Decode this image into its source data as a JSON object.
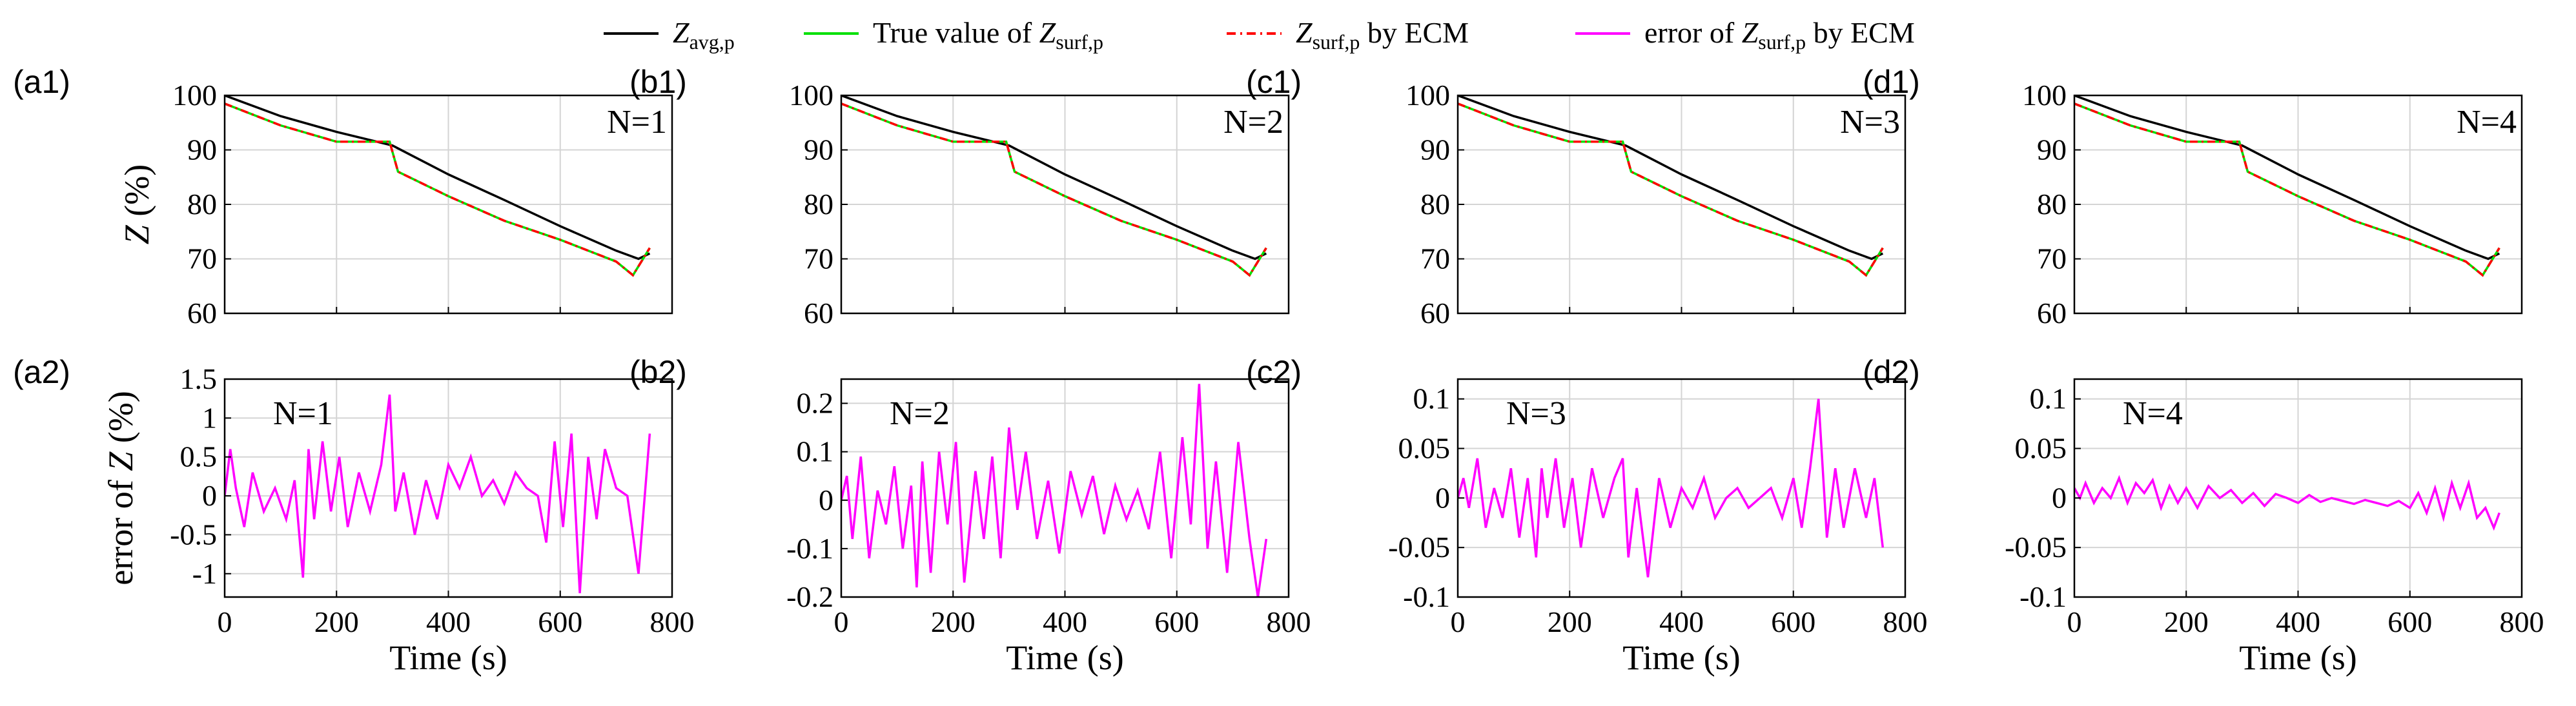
{
  "legend": {
    "items": [
      {
        "sym": "Z",
        "sub": "avg,p",
        "pre": "",
        "post": "",
        "color": "#000000",
        "style": "solid"
      },
      {
        "sym": "Z",
        "sub": "surf,p",
        "pre": "True value of ",
        "post": "",
        "color": "#00e000",
        "style": "solid"
      },
      {
        "sym": "Z",
        "sub": "surf,p",
        "pre": "",
        "post": " by ECM",
        "color": "#ff0000",
        "style": "dashdot"
      },
      {
        "sym": "Z",
        "sub": "surf,p",
        "pre": "error of ",
        "post": " by ECM",
        "color": "#ff00ff",
        "style": "solid"
      }
    ]
  },
  "colors": {
    "avg": "#000000",
    "true": "#00e000",
    "ecm": "#ff0000",
    "err": "#ff00ff",
    "grid": "#d4d4d4"
  },
  "chart_data": [
    {
      "type": "line",
      "panel": "(a1)",
      "annotation": "N=1",
      "ylabel": "Z (%)",
      "xlim": [
        0,
        800
      ],
      "ylim": [
        60,
        100
      ],
      "yticks": [
        60,
        70,
        80,
        90,
        100
      ],
      "xticks": [
        0,
        200,
        400,
        600,
        800
      ],
      "show_xticks": false,
      "series": [
        {
          "name": "Z_avg,p",
          "x": [
            0,
            100,
            200,
            300,
            400,
            500,
            600,
            700,
            740,
            760
          ],
          "values": [
            100,
            96.2,
            93.3,
            90.8,
            85.5,
            80.8,
            76.0,
            71.5,
            70.0,
            71.0
          ]
        },
        {
          "name": "True value of Z_surf,p",
          "x": [
            0,
            100,
            200,
            295,
            310,
            400,
            500,
            600,
            700,
            730,
            760
          ],
          "values": [
            98.5,
            94.5,
            91.5,
            91.5,
            86.0,
            81.5,
            77.0,
            73.5,
            69.5,
            67.0,
            72.0
          ]
        },
        {
          "name": "Z_surf,p by ECM",
          "x": [
            0,
            100,
            200,
            295,
            310,
            400,
            500,
            600,
            700,
            730,
            760
          ],
          "values": [
            98.5,
            94.5,
            91.5,
            91.5,
            86.0,
            81.5,
            77.0,
            73.5,
            69.5,
            67.0,
            72.0
          ]
        }
      ]
    },
    {
      "type": "line",
      "panel": "(b1)",
      "annotation": "N=2",
      "ylabel": "",
      "xlim": [
        0,
        800
      ],
      "ylim": [
        60,
        100
      ],
      "yticks": [
        60,
        70,
        80,
        90,
        100
      ],
      "xticks": [
        0,
        200,
        400,
        600,
        800
      ],
      "show_xticks": false,
      "series": [
        {
          "name": "Z_avg,p",
          "x": [
            0,
            100,
            200,
            300,
            400,
            500,
            600,
            700,
            740,
            760
          ],
          "values": [
            100,
            96.2,
            93.3,
            90.8,
            85.5,
            80.8,
            76.0,
            71.5,
            70.0,
            71.0
          ]
        },
        {
          "name": "True value of Z_surf,p",
          "x": [
            0,
            100,
            200,
            295,
            310,
            400,
            500,
            600,
            700,
            730,
            760
          ],
          "values": [
            98.5,
            94.5,
            91.5,
            91.5,
            86.0,
            81.5,
            77.0,
            73.5,
            69.5,
            67.0,
            72.0
          ]
        },
        {
          "name": "Z_surf,p by ECM",
          "x": [
            0,
            100,
            200,
            295,
            310,
            400,
            500,
            600,
            700,
            730,
            760
          ],
          "values": [
            98.5,
            94.5,
            91.5,
            91.5,
            86.0,
            81.5,
            77.0,
            73.5,
            69.5,
            67.0,
            72.0
          ]
        }
      ]
    },
    {
      "type": "line",
      "panel": "(c1)",
      "annotation": "N=3",
      "ylabel": "",
      "xlim": [
        0,
        800
      ],
      "ylim": [
        60,
        100
      ],
      "yticks": [
        60,
        70,
        80,
        90,
        100
      ],
      "xticks": [
        0,
        200,
        400,
        600,
        800
      ],
      "show_xticks": false,
      "series": [
        {
          "name": "Z_avg,p",
          "x": [
            0,
            100,
            200,
            300,
            400,
            500,
            600,
            700,
            740,
            760
          ],
          "values": [
            100,
            96.2,
            93.3,
            90.8,
            85.5,
            80.8,
            76.0,
            71.5,
            70.0,
            71.0
          ]
        },
        {
          "name": "True value of Z_surf,p",
          "x": [
            0,
            100,
            200,
            295,
            310,
            400,
            500,
            600,
            700,
            730,
            760
          ],
          "values": [
            98.5,
            94.5,
            91.5,
            91.5,
            86.0,
            81.5,
            77.0,
            73.5,
            69.5,
            67.0,
            72.0
          ]
        },
        {
          "name": "Z_surf,p by ECM",
          "x": [
            0,
            100,
            200,
            295,
            310,
            400,
            500,
            600,
            700,
            730,
            760
          ],
          "values": [
            98.5,
            94.5,
            91.5,
            91.5,
            86.0,
            81.5,
            77.0,
            73.5,
            69.5,
            67.0,
            72.0
          ]
        }
      ]
    },
    {
      "type": "line",
      "panel": "(d1)",
      "annotation": "N=4",
      "ylabel": "",
      "xlim": [
        0,
        800
      ],
      "ylim": [
        60,
        100
      ],
      "yticks": [
        60,
        70,
        80,
        90,
        100
      ],
      "xticks": [
        0,
        200,
        400,
        600,
        800
      ],
      "show_xticks": false,
      "series": [
        {
          "name": "Z_avg,p",
          "x": [
            0,
            100,
            200,
            300,
            400,
            500,
            600,
            700,
            740,
            760
          ],
          "values": [
            100,
            96.2,
            93.3,
            90.8,
            85.5,
            80.8,
            76.0,
            71.5,
            70.0,
            71.0
          ]
        },
        {
          "name": "True value of Z_surf,p",
          "x": [
            0,
            100,
            200,
            295,
            310,
            400,
            500,
            600,
            700,
            730,
            760
          ],
          "values": [
            98.5,
            94.5,
            91.5,
            91.5,
            86.0,
            81.5,
            77.0,
            73.5,
            69.5,
            67.0,
            72.0
          ]
        },
        {
          "name": "Z_surf,p by ECM",
          "x": [
            0,
            100,
            200,
            295,
            310,
            400,
            500,
            600,
            700,
            730,
            760
          ],
          "values": [
            98.5,
            94.5,
            91.5,
            91.5,
            86.0,
            81.5,
            77.0,
            73.5,
            69.5,
            67.0,
            72.0
          ]
        }
      ]
    },
    {
      "type": "line",
      "panel": "(a2)",
      "annotation": "N=1",
      "ylabel": "error of Z (%)",
      "xlabel": "Time (s)",
      "xlim": [
        0,
        800
      ],
      "ylim": [
        -1.3,
        1.5
      ],
      "yticks": [
        -1,
        -0.5,
        0,
        0.5,
        1,
        1.5
      ],
      "ytick_labels": [
        "-1",
        "-0.5",
        "0",
        "0.5",
        "1",
        "1.5"
      ],
      "xticks": [
        0,
        200,
        400,
        600,
        800
      ],
      "show_xticks": true,
      "series": [
        {
          "name": "error of Z_surf,p by ECM",
          "x": [
            0,
            10,
            20,
            35,
            50,
            70,
            90,
            110,
            125,
            140,
            150,
            160,
            175,
            190,
            205,
            220,
            240,
            260,
            280,
            295,
            305,
            320,
            340,
            360,
            380,
            400,
            420,
            440,
            460,
            480,
            500,
            520,
            540,
            560,
            575,
            590,
            605,
            620,
            635,
            650,
            665,
            680,
            700,
            720,
            740,
            760
          ],
          "values": [
            0,
            0.6,
            0.1,
            -0.4,
            0.3,
            -0.2,
            0.1,
            -0.3,
            0.2,
            -1.05,
            0.6,
            -0.3,
            0.7,
            -0.2,
            0.5,
            -0.4,
            0.3,
            -0.2,
            0.4,
            1.3,
            -0.2,
            0.3,
            -0.5,
            0.2,
            -0.3,
            0.4,
            0.1,
            0.5,
            0.0,
            0.2,
            -0.1,
            0.3,
            0.1,
            0.0,
            -0.6,
            0.7,
            -0.4,
            0.8,
            -1.25,
            0.5,
            -0.3,
            0.6,
            0.1,
            0.0,
            -1.0,
            0.8
          ]
        }
      ]
    },
    {
      "type": "line",
      "panel": "(b2)",
      "annotation": "N=2",
      "ylabel": "",
      "xlabel": "Time (s)",
      "xlim": [
        0,
        800
      ],
      "ylim": [
        -0.2,
        0.25
      ],
      "yticks": [
        -0.2,
        -0.1,
        0,
        0.1,
        0.2
      ],
      "ytick_labels": [
        "-0.2",
        "-0.1",
        "0",
        "0.1",
        "0.2"
      ],
      "xticks": [
        0,
        200,
        400,
        600,
        800
      ],
      "show_xticks": true,
      "series": [
        {
          "name": "error of Z_surf,p by ECM",
          "x": [
            0,
            10,
            20,
            35,
            50,
            65,
            80,
            95,
            110,
            125,
            135,
            145,
            160,
            175,
            190,
            205,
            220,
            240,
            255,
            270,
            285,
            300,
            315,
            330,
            350,
            370,
            390,
            410,
            430,
            450,
            470,
            490,
            510,
            530,
            550,
            570,
            590,
            610,
            625,
            640,
            655,
            670,
            690,
            710,
            730,
            745,
            760
          ],
          "values": [
            0,
            0.05,
            -0.08,
            0.09,
            -0.12,
            0.02,
            -0.05,
            0.07,
            -0.1,
            0.03,
            -0.18,
            0.08,
            -0.15,
            0.1,
            -0.05,
            0.12,
            -0.17,
            0.06,
            -0.08,
            0.09,
            -0.12,
            0.15,
            -0.02,
            0.1,
            -0.08,
            0.04,
            -0.11,
            0.06,
            -0.03,
            0.05,
            -0.07,
            0.03,
            -0.04,
            0.02,
            -0.06,
            0.1,
            -0.12,
            0.13,
            -0.05,
            0.24,
            -0.1,
            0.08,
            -0.15,
            0.12,
            -0.08,
            -0.2,
            -0.08
          ]
        }
      ]
    },
    {
      "type": "line",
      "panel": "(c2)",
      "annotation": "N=3",
      "ylabel": "",
      "xlabel": "Time (s)",
      "xlim": [
        0,
        800
      ],
      "ylim": [
        -0.1,
        0.12
      ],
      "yticks": [
        -0.1,
        -0.05,
        0,
        0.05,
        0.1
      ],
      "ytick_labels": [
        "-0.1",
        "-0.05",
        "0",
        "0.05",
        "0.1"
      ],
      "xticks": [
        0,
        200,
        400,
        600,
        800
      ],
      "show_xticks": true,
      "series": [
        {
          "name": "error of Z_surf,p by ECM",
          "x": [
            0,
            10,
            20,
            35,
            50,
            65,
            80,
            95,
            110,
            125,
            140,
            150,
            160,
            175,
            190,
            205,
            220,
            240,
            260,
            280,
            295,
            305,
            320,
            340,
            360,
            380,
            400,
            420,
            440,
            460,
            480,
            500,
            520,
            540,
            560,
            580,
            600,
            615,
            630,
            645,
            660,
            675,
            690,
            710,
            730,
            745,
            760
          ],
          "values": [
            0,
            0.02,
            -0.01,
            0.04,
            -0.03,
            0.01,
            -0.02,
            0.03,
            -0.04,
            0.02,
            -0.06,
            0.03,
            -0.02,
            0.04,
            -0.03,
            0.02,
            -0.05,
            0.03,
            -0.02,
            0.02,
            0.04,
            -0.06,
            0.01,
            -0.08,
            0.02,
            -0.03,
            0.01,
            -0.01,
            0.02,
            -0.02,
            0.0,
            0.01,
            -0.01,
            0.0,
            0.01,
            -0.02,
            0.02,
            -0.03,
            0.03,
            0.1,
            -0.04,
            0.03,
            -0.03,
            0.03,
            -0.02,
            0.02,
            -0.05
          ]
        }
      ]
    },
    {
      "type": "line",
      "panel": "(d2)",
      "annotation": "N=4",
      "ylabel": "",
      "xlabel": "Time (s)",
      "xlim": [
        0,
        800
      ],
      "ylim": [
        -0.1,
        0.12
      ],
      "yticks": [
        -0.1,
        -0.05,
        0,
        0.05,
        0.1
      ],
      "ytick_labels": [
        "-0.1",
        "-0.05",
        "0",
        "0.05",
        "0.1"
      ],
      "xticks": [
        0,
        200,
        400,
        600,
        800
      ],
      "show_xticks": true,
      "series": [
        {
          "name": "error of Z_surf,p by ECM",
          "x": [
            0,
            10,
            20,
            35,
            50,
            65,
            80,
            95,
            110,
            125,
            140,
            155,
            170,
            185,
            200,
            220,
            240,
            260,
            280,
            300,
            320,
            340,
            360,
            380,
            400,
            420,
            440,
            460,
            480,
            500,
            520,
            540,
            560,
            580,
            600,
            615,
            630,
            645,
            660,
            675,
            690,
            705,
            720,
            735,
            750,
            760
          ],
          "values": [
            0.01,
            0.0,
            0.015,
            -0.005,
            0.01,
            0.0,
            0.02,
            -0.005,
            0.015,
            0.005,
            0.018,
            -0.01,
            0.012,
            -0.005,
            0.01,
            -0.01,
            0.012,
            0.0,
            0.008,
            -0.005,
            0.005,
            -0.008,
            0.004,
            0.0,
            -0.005,
            0.003,
            -0.004,
            0.0,
            -0.003,
            -0.006,
            -0.002,
            -0.005,
            -0.008,
            -0.003,
            -0.01,
            0.005,
            -0.015,
            0.01,
            -0.02,
            0.015,
            -0.01,
            0.015,
            -0.02,
            -0.01,
            -0.03,
            -0.015
          ]
        }
      ]
    }
  ]
}
